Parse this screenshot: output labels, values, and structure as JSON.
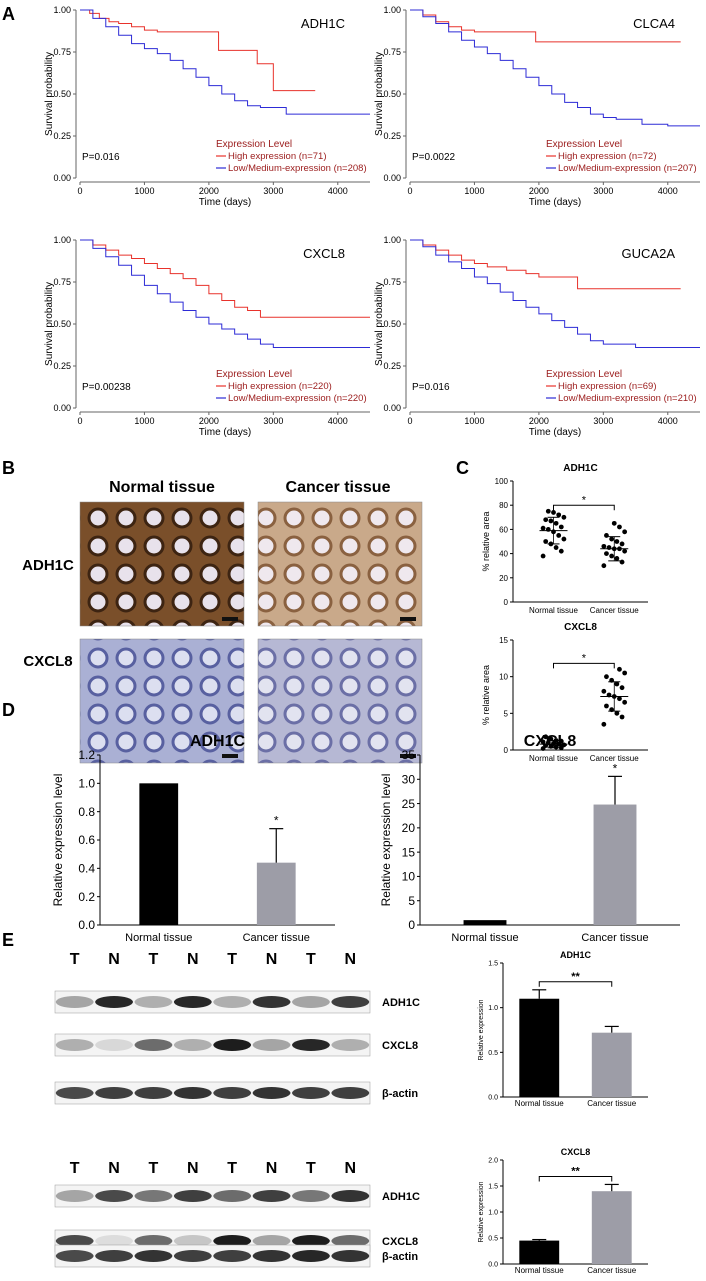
{
  "panel_letters": {
    "A": "A",
    "B": "B",
    "C": "C",
    "D": "D",
    "E": "E"
  },
  "colors": {
    "high": "#e8322b",
    "low": "#2d2bd6",
    "legend_title": "#9b1b1b",
    "bar_black": "#000000",
    "bar_gray": "#9d9da7",
    "tissue_brown": "#b58a5a",
    "tissue_blue": "#9aa0c8"
  },
  "km_common": {
    "ylabel": "Survival probability",
    "xlabel": "Time (days)",
    "xticks": [
      "0",
      "1000",
      "2000",
      "3000",
      "4000"
    ],
    "yticks": [
      "0.00",
      "0.25",
      "0.50",
      "0.75",
      "1.00"
    ],
    "legend_title": "Expression Level"
  },
  "ihc": {
    "col_normal": "Normal tissue",
    "col_cancer": "Cancer tissue",
    "row_adh1c": "ADH1C",
    "row_cxcl8": "CXCL8"
  },
  "western": {
    "lanes": [
      "T",
      "N",
      "T",
      "N",
      "T",
      "N",
      "T",
      "N"
    ],
    "band_labels": [
      "ADH1C",
      "CXCL8",
      "β-actin"
    ]
  },
  "chart_data": [
    {
      "id": "A1",
      "type": "line",
      "title": "ADH1C",
      "pvalue": "P=0.016",
      "xlim": [
        0,
        4500
      ],
      "ylim": [
        0,
        1
      ],
      "series": [
        {
          "name": "High expression (n=71)",
          "color": "high",
          "x": [
            0,
            150,
            300,
            450,
            600,
            800,
            1000,
            1200,
            1500,
            1800,
            2100,
            2150,
            2400,
            2700,
            2750,
            3000,
            3650
          ],
          "y": [
            1.0,
            0.98,
            0.95,
            0.93,
            0.92,
            0.9,
            0.88,
            0.87,
            0.87,
            0.87,
            0.87,
            0.76,
            0.76,
            0.76,
            0.68,
            0.52,
            0.52
          ]
        },
        {
          "name": "Low/Medium-expression (n=208)",
          "color": "low",
          "x": [
            0,
            200,
            400,
            600,
            800,
            1000,
            1200,
            1400,
            1600,
            1800,
            2000,
            2200,
            2400,
            2600,
            2800,
            3000,
            3200,
            3600,
            4000,
            4500
          ],
          "y": [
            1.0,
            0.95,
            0.9,
            0.85,
            0.8,
            0.77,
            0.74,
            0.7,
            0.65,
            0.6,
            0.55,
            0.5,
            0.46,
            0.43,
            0.42,
            0.42,
            0.38,
            0.38,
            0.38,
            0.38
          ]
        }
      ]
    },
    {
      "id": "A2",
      "type": "line",
      "title": "CLCA4",
      "pvalue": "P=0.0022",
      "xlim": [
        0,
        4500
      ],
      "ylim": [
        0,
        1
      ],
      "series": [
        {
          "name": "High expression (n=72)",
          "color": "high",
          "x": [
            0,
            200,
            400,
            600,
            800,
            1000,
            1200,
            1500,
            1900,
            1950,
            2500,
            3000,
            4000,
            4200
          ],
          "y": [
            1.0,
            0.97,
            0.93,
            0.9,
            0.88,
            0.87,
            0.87,
            0.87,
            0.87,
            0.81,
            0.81,
            0.81,
            0.81,
            0.81
          ]
        },
        {
          "name": "Low/Medium-expression (n=207)",
          "color": "low",
          "x": [
            0,
            200,
            400,
            600,
            800,
            1000,
            1200,
            1400,
            1600,
            1800,
            2000,
            2200,
            2400,
            2600,
            2800,
            3000,
            3200,
            3600,
            4000,
            4500
          ],
          "y": [
            1.0,
            0.96,
            0.92,
            0.87,
            0.82,
            0.78,
            0.74,
            0.7,
            0.65,
            0.6,
            0.55,
            0.5,
            0.45,
            0.42,
            0.38,
            0.36,
            0.35,
            0.32,
            0.31,
            0.31
          ]
        }
      ]
    },
    {
      "id": "A3",
      "type": "line",
      "title": "CXCL8",
      "pvalue": "P=0.00238",
      "xlim": [
        0,
        4500
      ],
      "ylim": [
        0,
        1
      ],
      "series": [
        {
          "name": "High expression (n=220)",
          "color": "high",
          "x": [
            0,
            200,
            400,
            600,
            800,
            1000,
            1200,
            1400,
            1600,
            1800,
            2000,
            2200,
            2400,
            2600,
            2800,
            3000,
            3500,
            4000,
            4500
          ],
          "y": [
            1.0,
            0.97,
            0.94,
            0.91,
            0.89,
            0.86,
            0.83,
            0.8,
            0.77,
            0.73,
            0.68,
            0.64,
            0.6,
            0.58,
            0.54,
            0.54,
            0.54,
            0.54,
            0.54
          ]
        },
        {
          "name": "Low/Medium-expression (n=220)",
          "color": "low",
          "x": [
            0,
            200,
            400,
            600,
            800,
            1000,
            1200,
            1400,
            1600,
            1800,
            2000,
            2200,
            2400,
            2600,
            2800,
            3000,
            3500,
            4000,
            4500
          ],
          "y": [
            1.0,
            0.95,
            0.9,
            0.85,
            0.79,
            0.73,
            0.68,
            0.63,
            0.58,
            0.54,
            0.5,
            0.47,
            0.44,
            0.41,
            0.38,
            0.36,
            0.36,
            0.36,
            0.36
          ]
        }
      ]
    },
    {
      "id": "A4",
      "type": "line",
      "title": "GUCA2A",
      "pvalue": "P=0.016",
      "xlim": [
        0,
        4500
      ],
      "ylim": [
        0,
        1
      ],
      "series": [
        {
          "name": "High expression (n=69)",
          "color": "high",
          "x": [
            0,
            200,
            400,
            600,
            800,
            1000,
            1200,
            1500,
            1800,
            2000,
            2200,
            2500,
            2600,
            3000,
            3500,
            4000,
            4200
          ],
          "y": [
            1.0,
            0.97,
            0.94,
            0.91,
            0.88,
            0.86,
            0.84,
            0.82,
            0.8,
            0.78,
            0.78,
            0.78,
            0.71,
            0.71,
            0.71,
            0.71,
            0.71
          ]
        },
        {
          "name": "Low/Medium-expression (n=210)",
          "color": "low",
          "x": [
            0,
            200,
            400,
            600,
            800,
            1000,
            1200,
            1400,
            1600,
            1800,
            2000,
            2200,
            2400,
            2600,
            2800,
            3000,
            3500,
            4000,
            4500
          ],
          "y": [
            1.0,
            0.96,
            0.91,
            0.87,
            0.83,
            0.78,
            0.74,
            0.69,
            0.64,
            0.6,
            0.56,
            0.52,
            0.48,
            0.44,
            0.4,
            0.38,
            0.36,
            0.36,
            0.36
          ]
        }
      ]
    },
    {
      "id": "C1",
      "type": "scatter",
      "title": "ADH1C",
      "ylabel": "% relative area",
      "ylim": [
        0,
        100
      ],
      "yticks": [
        0,
        20,
        40,
        60,
        80,
        100
      ],
      "categories": [
        "Normal tissue",
        "Cancer tissue"
      ],
      "significance": "*",
      "groups": [
        {
          "name": "Normal tissue",
          "mean": 59,
          "sd": 11,
          "values": [
            38,
            42,
            45,
            48,
            50,
            52,
            55,
            58,
            60,
            61,
            62,
            65,
            67,
            68,
            70,
            72,
            74,
            75
          ]
        },
        {
          "name": "Cancer tissue",
          "mean": 44,
          "sd": 10,
          "values": [
            30,
            33,
            36,
            38,
            40,
            42,
            44,
            44,
            45,
            46,
            48,
            50,
            52,
            55,
            58,
            62,
            65
          ]
        }
      ]
    },
    {
      "id": "C2",
      "type": "scatter",
      "title": "CXCL8",
      "ylabel": "% relative area",
      "ylim": [
        0,
        15
      ],
      "yticks": [
        0,
        5,
        10,
        15
      ],
      "categories": [
        "Normal tissue",
        "Cancer tissue"
      ],
      "significance": "*",
      "groups": [
        {
          "name": "Normal tissue",
          "mean": 0.8,
          "sd": 0.5,
          "values": [
            0.2,
            0.3,
            0.4,
            0.5,
            0.6,
            0.7,
            0.8,
            0.9,
            1.0,
            1.1,
            1.2,
            1.3,
            1.5,
            1.8
          ]
        },
        {
          "name": "Cancer tissue",
          "mean": 7.3,
          "sd": 2,
          "values": [
            3.5,
            4.5,
            5.0,
            5.5,
            6.0,
            6.5,
            7.0,
            7.3,
            7.5,
            8.0,
            8.5,
            9.0,
            9.5,
            10.0,
            10.5,
            11.0
          ]
        }
      ]
    },
    {
      "id": "D1",
      "type": "bar",
      "title": "ADH1C",
      "ylabel": "Relative expression level",
      "ylim": [
        0,
        1.2
      ],
      "yticks": [
        "0.0",
        "0.2",
        "0.4",
        "0.6",
        "0.8",
        "1.0",
        "1.2"
      ],
      "categories": [
        "Normal tissue",
        "Cancer tissue"
      ],
      "values": [
        1.0,
        0.44
      ],
      "errors": [
        0,
        0.24
      ],
      "significance": [
        "",
        "*"
      ]
    },
    {
      "id": "D2",
      "type": "bar",
      "title": "CXCL8",
      "ylabel": "Relative expression level",
      "ylim": [
        0,
        35
      ],
      "yticks": [
        "0",
        "5",
        "10",
        "15",
        "20",
        "25",
        "30",
        "35"
      ],
      "categories": [
        "Normal tissue",
        "Cancer tissue"
      ],
      "values": [
        1.0,
        24.8
      ],
      "errors": [
        0,
        5.8
      ],
      "significance": [
        "",
        "*"
      ]
    },
    {
      "id": "E1",
      "type": "bar",
      "title": "ADH1C",
      "ylabel": "Relative expression",
      "ylim": [
        0,
        1.5
      ],
      "yticks": [
        "0.0",
        "0.5",
        "1.0",
        "1.5"
      ],
      "categories": [
        "Normal tissue",
        "Cancer tissue"
      ],
      "values": [
        1.1,
        0.72
      ],
      "errors": [
        0.1,
        0.07
      ],
      "significance": "**"
    },
    {
      "id": "E2",
      "type": "bar",
      "title": "CXCL8",
      "ylabel": "Relative expression",
      "ylim": [
        0,
        2.0
      ],
      "yticks": [
        "0.0",
        "0.5",
        "1.0",
        "1.5",
        "2.0"
      ],
      "categories": [
        "Normal tissue",
        "Cancer tissue"
      ],
      "values": [
        0.45,
        1.4
      ],
      "errors": [
        0.02,
        0.13
      ],
      "significance": "**"
    }
  ]
}
